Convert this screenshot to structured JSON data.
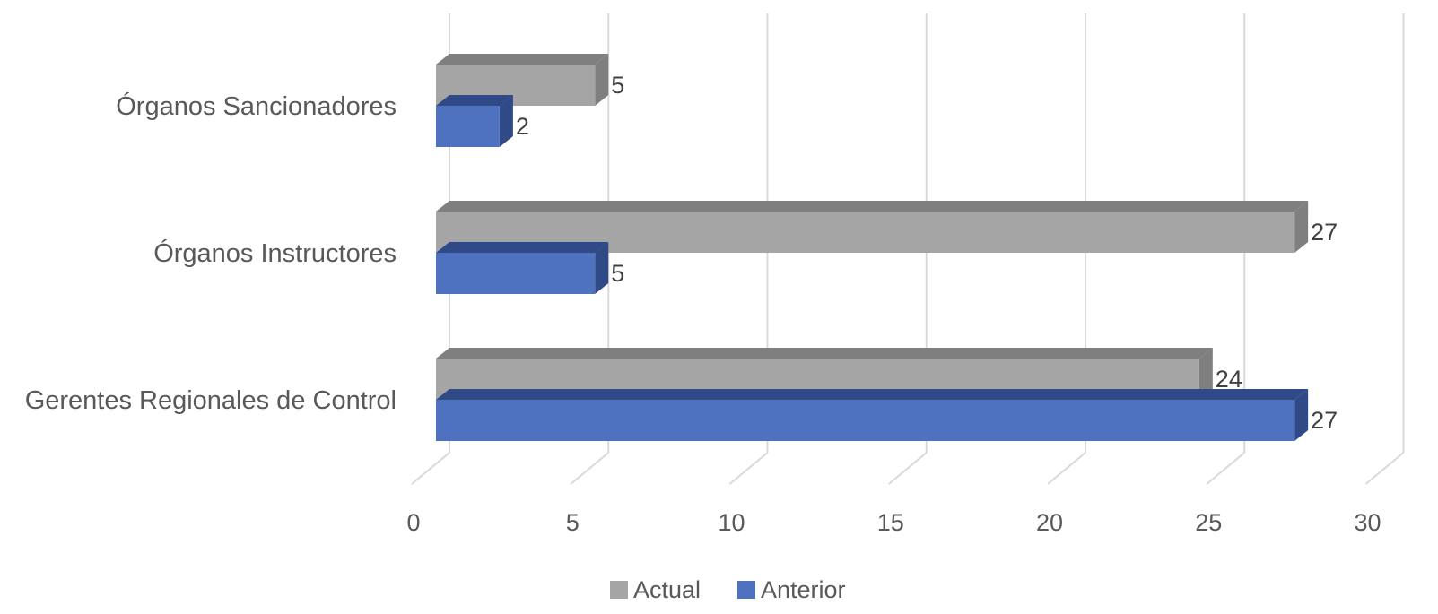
{
  "chart_data": {
    "type": "bar",
    "orientation": "horizontal",
    "style": "3d-clustered",
    "categories": [
      "Gerentes Regionales de Control",
      "Órganos Instructores",
      "Órganos Sancionadores"
    ],
    "series": [
      {
        "name": "Actual",
        "values": [
          24,
          27,
          5
        ],
        "color": "#a5a5a5",
        "side_color": "#7f7f7f"
      },
      {
        "name": "Anterior",
        "values": [
          27,
          5,
          2
        ],
        "color": "#4f72c0",
        "side_color": "#2f4a86"
      }
    ],
    "xlim": [
      0,
      30
    ],
    "x_ticks": [
      0,
      5,
      10,
      15,
      20,
      25,
      30
    ],
    "grid": true,
    "legend_position": "bottom",
    "data_labels": true
  }
}
